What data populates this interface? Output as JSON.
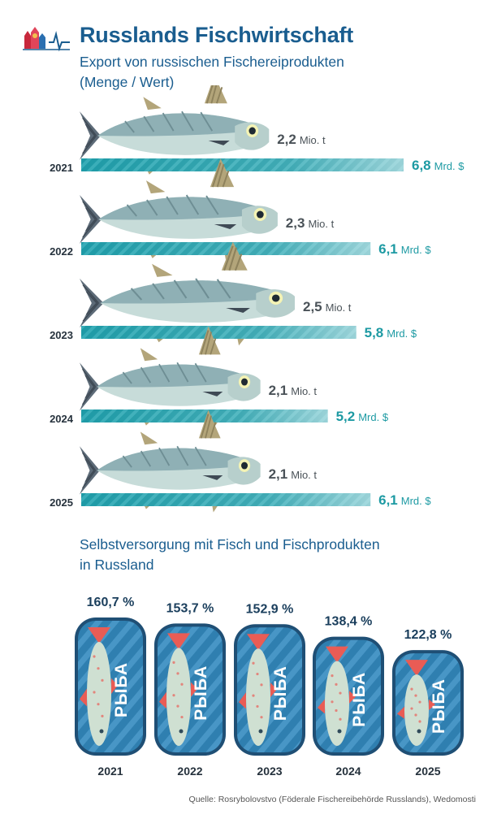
{
  "header": {
    "title": "Russlands Fischwirtschaft",
    "subtitle_line1": "Export von russischen Fischereiprodukten",
    "subtitle_line2": "(Menge / Wert)"
  },
  "section2": {
    "title_line1": "Selbstversorgung mit Fisch und Fischprodukten",
    "title_line2": "in Russland"
  },
  "source": "Quelle: Rosrybolovstvo (Föderale Fischereibehörde Russlands), Wedomosti",
  "colors": {
    "title_blue": "#1a5d8f",
    "value_teal": "#1d9aa3",
    "bar_teal": "#1e9aa6",
    "fish_body": "#8fb0b5",
    "can_blue": "#2f7fb0"
  },
  "chart_data": [
    {
      "type": "bar",
      "categories": [
        "2021",
        "2022",
        "2023",
        "2024",
        "2025"
      ],
      "series": [
        {
          "name": "Menge",
          "unit": "Mio. t",
          "values": [
            2.2,
            2.3,
            2.5,
            2.1,
            2.1
          ],
          "labels": [
            "2,2",
            "2,3",
            "2,5",
            "2,1",
            "2,1"
          ]
        },
        {
          "name": "Wert",
          "unit": "Mrd. $",
          "values": [
            6.8,
            6.1,
            5.8,
            5.2,
            6.1
          ],
          "labels": [
            "6,8",
            "6,1",
            "5,8",
            "5,2",
            "6,1"
          ]
        }
      ]
    },
    {
      "type": "bar",
      "categories": [
        "2021",
        "2022",
        "2023",
        "2024",
        "2025"
      ],
      "values": [
        160.7,
        153.7,
        152.9,
        138.4,
        122.8
      ],
      "labels": [
        "160,7 %",
        "153,7 %",
        "152,9 %",
        "138,4 %",
        "122,8 %"
      ],
      "can_text": "РЫБА"
    }
  ]
}
